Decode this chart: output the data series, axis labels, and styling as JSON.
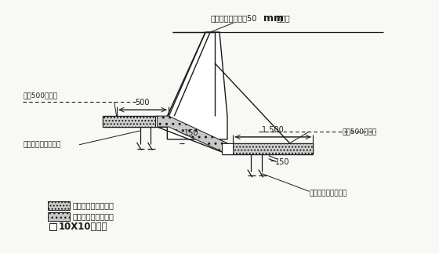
{
  "bg_color": "#f8f8f4",
  "line_color": "#1a1a1a",
  "text_top": "阴阳角要控制半径50",
  "text_top_mm": "mm",
  "text_top_end": "的圆弧",
  "text_left_ctrl": "放上500控制线",
  "text_right_ctrl": "放上500控制线",
  "text_left_bar": "插上钢筋以固定方木",
  "text_right_bar": "插上钢筋以固定方木",
  "dim_500": "500",
  "dim_1500": "1 500",
  "dim_150_left": "150",
  "dim_150_right": "150",
  "legend1": "第一次浇筑平面垫层",
  "legend2": "第二次浇筑斜面垫层",
  "legend3": "10X10的方木"
}
